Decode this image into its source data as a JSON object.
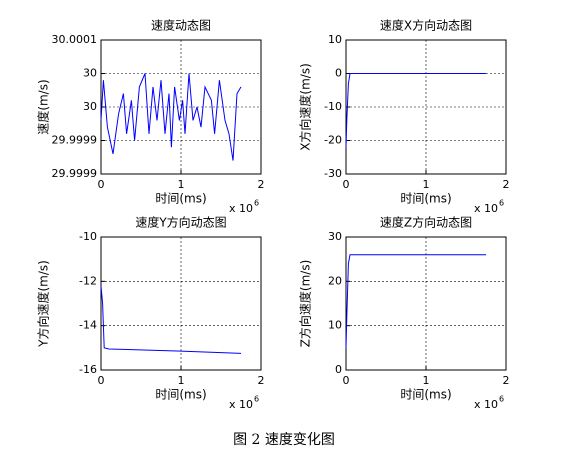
{
  "chart_data": [
    {
      "type": "line",
      "title": "速度动态图",
      "xlabel": "时间(ms)",
      "ylabel": "速度(m/s)",
      "x_multiplier": "x 10",
      "x_exponent": "6",
      "xlim": [
        0,
        2
      ],
      "xticks": [
        0,
        1,
        2
      ],
      "ylim": [
        29.9999,
        30.0001
      ],
      "yticks": [
        {
          "value": 29.9999,
          "label": "29.9999"
        },
        {
          "value": 29.99995,
          "label": "29.9999"
        },
        {
          "value": 30,
          "label": "30"
        },
        {
          "value": 30.00005,
          "label": "30"
        },
        {
          "value": 30.0001,
          "label": "30.0001"
        }
      ],
      "grid": true,
      "color": "#0000ff",
      "x": [
        0,
        0.03,
        0.08,
        0.15,
        0.22,
        0.28,
        0.32,
        0.38,
        0.42,
        0.48,
        0.55,
        0.6,
        0.65,
        0.7,
        0.75,
        0.8,
        0.85,
        0.88,
        0.92,
        0.98,
        1.02,
        1.05,
        1.1,
        1.15,
        1.2,
        1.25,
        1.3,
        1.38,
        1.42,
        1.48,
        1.55,
        1.6,
        1.65,
        1.7,
        1.75
      ],
      "values": [
        29.99998,
        30.00004,
        29.99997,
        29.99993,
        29.99999,
        30.00002,
        29.99996,
        30.00001,
        29.99995,
        30.00003,
        30.00005,
        29.99996,
        30.00003,
        29.99998,
        30.00004,
        29.99996,
        30.00002,
        29.99994,
        30.00003,
        29.99998,
        30.00001,
        29.99996,
        30.00005,
        29.99998,
        30,
        29.99997,
        30.00003,
        30.00001,
        29.99996,
        30.00004,
        29.99998,
        29.99996,
        29.99992,
        30.00002,
        30.00003
      ]
    },
    {
      "type": "line",
      "title": "速度X方向动态图",
      "xlabel": "时间(ms)",
      "ylabel": "X方向速度(m/s)",
      "x_multiplier": "x 10",
      "x_exponent": "6",
      "xlim": [
        0,
        2
      ],
      "xticks": [
        0,
        1,
        2
      ],
      "ylim": [
        -30,
        10
      ],
      "yticks": [
        -30,
        -20,
        -10,
        0,
        10
      ],
      "grid": true,
      "color": "#0000ff",
      "x": [
        0,
        0.01,
        0.03,
        0.05,
        1.75
      ],
      "values": [
        -22,
        -14,
        -3,
        0,
        0
      ]
    },
    {
      "type": "line",
      "title": "速度Y方向动态图",
      "xlabel": "时间(ms)",
      "ylabel": "Y方向速度(m/s)",
      "x_multiplier": "x 10",
      "x_exponent": "6",
      "xlim": [
        0,
        2
      ],
      "xticks": [
        0,
        1,
        2
      ],
      "ylim": [
        -16,
        -10
      ],
      "yticks": [
        -16,
        -14,
        -12,
        -10
      ],
      "grid": true,
      "color": "#0000ff",
      "x": [
        0,
        0.02,
        0.04,
        0.1,
        1,
        1.75
      ],
      "values": [
        -12.2,
        -13,
        -15,
        -15.05,
        -15.15,
        -15.25
      ]
    },
    {
      "type": "line",
      "title": "速度Z方向动态图",
      "xlabel": "时间(ms)",
      "ylabel": "Z方向速度(m/s)",
      "x_multiplier": "x 10",
      "x_exponent": "6",
      "xlim": [
        0,
        2
      ],
      "xticks": [
        0,
        1,
        2
      ],
      "ylim": [
        0,
        30
      ],
      "yticks": [
        0,
        10,
        20,
        30
      ],
      "grid": true,
      "color": "#0000ff",
      "x": [
        0,
        0.01,
        0.03,
        0.05,
        1.75
      ],
      "values": [
        5,
        12,
        24,
        26,
        26
      ]
    }
  ],
  "caption": "图 2 速度变化图"
}
